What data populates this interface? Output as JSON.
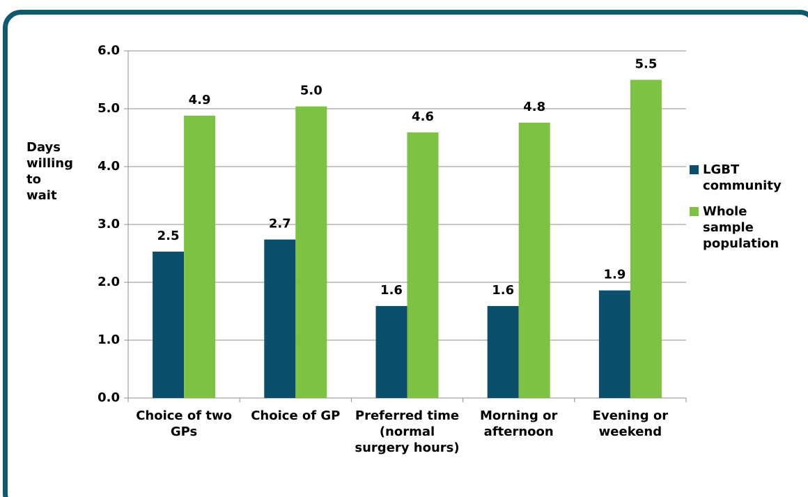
{
  "chart_data": {
    "type": "bar",
    "y_label": "Days willing to wait",
    "categories": [
      "Choice of two GPs",
      "Choice of GP",
      "Preferred time (normal surgery hours)",
      "Morning or afternoon",
      "Evening or weekend"
    ],
    "series": [
      {
        "name": "LGBT community",
        "color": "#0b4f6c",
        "values": [
          2.53,
          2.74,
          1.59,
          1.59,
          1.86
        ],
        "value_labels": [
          "2.5",
          "2.7",
          "1.6",
          "1.6",
          "1.9"
        ]
      },
      {
        "name": "Whole sample population",
        "color": "#7dc242",
        "values": [
          4.88,
          5.04,
          4.59,
          4.76,
          5.5
        ],
        "value_labels": [
          "4.9",
          "5.0",
          "4.6",
          "4.8",
          "5.5"
        ]
      }
    ],
    "ylim": [
      0,
      6
    ],
    "yticks": [
      {
        "value": 0,
        "label": "0.0"
      },
      {
        "value": 1,
        "label": "1.0"
      },
      {
        "value": 2,
        "label": "2.0"
      },
      {
        "value": 3,
        "label": "3.0"
      },
      {
        "value": 4,
        "label": "4.0"
      },
      {
        "value": 5,
        "label": "5.0"
      },
      {
        "value": 6,
        "label": "6.0"
      }
    ],
    "grid": true,
    "legend": "right"
  }
}
